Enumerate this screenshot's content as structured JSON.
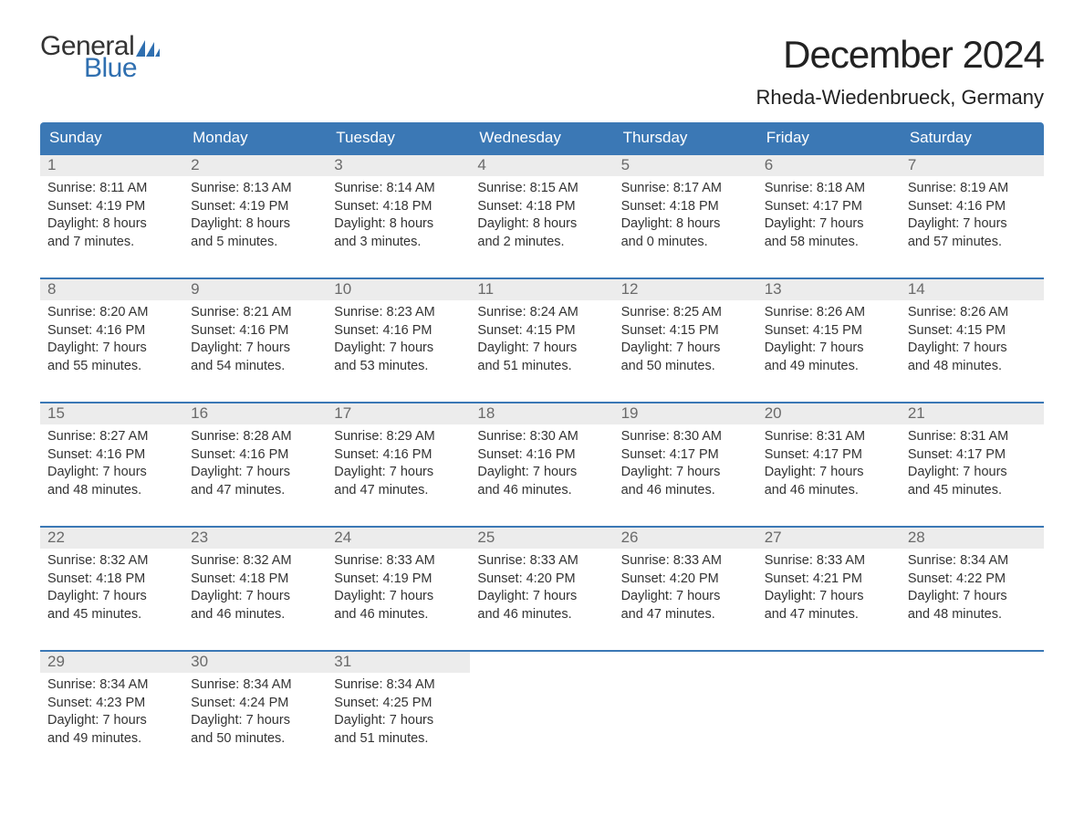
{
  "brand": {
    "line1": "General",
    "line2": "Blue",
    "accent_color": "#2f6fb0"
  },
  "header": {
    "month_title": "December 2024",
    "location": "Rheda-Wiedenbrueck, Germany"
  },
  "style": {
    "type": "calendar-table",
    "header_bg": "#3b78b5",
    "header_text_color": "#ffffff",
    "row_separator_color": "#3b78b5",
    "daynum_bg": "#ececec",
    "daynum_color": "#6a6a6a",
    "body_text_color": "#333333",
    "page_bg": "#ffffff",
    "title_fontsize": 42,
    "location_fontsize": 22,
    "weekday_fontsize": 17,
    "body_fontsize": 14.5,
    "columns": 7
  },
  "weekdays": [
    "Sunday",
    "Monday",
    "Tuesday",
    "Wednesday",
    "Thursday",
    "Friday",
    "Saturday"
  ],
  "weeks": [
    [
      {
        "day": "1",
        "sunrise": "Sunrise: 8:11 AM",
        "sunset": "Sunset: 4:19 PM",
        "d1": "Daylight: 8 hours",
        "d2": "and 7 minutes."
      },
      {
        "day": "2",
        "sunrise": "Sunrise: 8:13 AM",
        "sunset": "Sunset: 4:19 PM",
        "d1": "Daylight: 8 hours",
        "d2": "and 5 minutes."
      },
      {
        "day": "3",
        "sunrise": "Sunrise: 8:14 AM",
        "sunset": "Sunset: 4:18 PM",
        "d1": "Daylight: 8 hours",
        "d2": "and 3 minutes."
      },
      {
        "day": "4",
        "sunrise": "Sunrise: 8:15 AM",
        "sunset": "Sunset: 4:18 PM",
        "d1": "Daylight: 8 hours",
        "d2": "and 2 minutes."
      },
      {
        "day": "5",
        "sunrise": "Sunrise: 8:17 AM",
        "sunset": "Sunset: 4:18 PM",
        "d1": "Daylight: 8 hours",
        "d2": "and 0 minutes."
      },
      {
        "day": "6",
        "sunrise": "Sunrise: 8:18 AM",
        "sunset": "Sunset: 4:17 PM",
        "d1": "Daylight: 7 hours",
        "d2": "and 58 minutes."
      },
      {
        "day": "7",
        "sunrise": "Sunrise: 8:19 AM",
        "sunset": "Sunset: 4:16 PM",
        "d1": "Daylight: 7 hours",
        "d2": "and 57 minutes."
      }
    ],
    [
      {
        "day": "8",
        "sunrise": "Sunrise: 8:20 AM",
        "sunset": "Sunset: 4:16 PM",
        "d1": "Daylight: 7 hours",
        "d2": "and 55 minutes."
      },
      {
        "day": "9",
        "sunrise": "Sunrise: 8:21 AM",
        "sunset": "Sunset: 4:16 PM",
        "d1": "Daylight: 7 hours",
        "d2": "and 54 minutes."
      },
      {
        "day": "10",
        "sunrise": "Sunrise: 8:23 AM",
        "sunset": "Sunset: 4:16 PM",
        "d1": "Daylight: 7 hours",
        "d2": "and 53 minutes."
      },
      {
        "day": "11",
        "sunrise": "Sunrise: 8:24 AM",
        "sunset": "Sunset: 4:15 PM",
        "d1": "Daylight: 7 hours",
        "d2": "and 51 minutes."
      },
      {
        "day": "12",
        "sunrise": "Sunrise: 8:25 AM",
        "sunset": "Sunset: 4:15 PM",
        "d1": "Daylight: 7 hours",
        "d2": "and 50 minutes."
      },
      {
        "day": "13",
        "sunrise": "Sunrise: 8:26 AM",
        "sunset": "Sunset: 4:15 PM",
        "d1": "Daylight: 7 hours",
        "d2": "and 49 minutes."
      },
      {
        "day": "14",
        "sunrise": "Sunrise: 8:26 AM",
        "sunset": "Sunset: 4:15 PM",
        "d1": "Daylight: 7 hours",
        "d2": "and 48 minutes."
      }
    ],
    [
      {
        "day": "15",
        "sunrise": "Sunrise: 8:27 AM",
        "sunset": "Sunset: 4:16 PM",
        "d1": "Daylight: 7 hours",
        "d2": "and 48 minutes."
      },
      {
        "day": "16",
        "sunrise": "Sunrise: 8:28 AM",
        "sunset": "Sunset: 4:16 PM",
        "d1": "Daylight: 7 hours",
        "d2": "and 47 minutes."
      },
      {
        "day": "17",
        "sunrise": "Sunrise: 8:29 AM",
        "sunset": "Sunset: 4:16 PM",
        "d1": "Daylight: 7 hours",
        "d2": "and 47 minutes."
      },
      {
        "day": "18",
        "sunrise": "Sunrise: 8:30 AM",
        "sunset": "Sunset: 4:16 PM",
        "d1": "Daylight: 7 hours",
        "d2": "and 46 minutes."
      },
      {
        "day": "19",
        "sunrise": "Sunrise: 8:30 AM",
        "sunset": "Sunset: 4:17 PM",
        "d1": "Daylight: 7 hours",
        "d2": "and 46 minutes."
      },
      {
        "day": "20",
        "sunrise": "Sunrise: 8:31 AM",
        "sunset": "Sunset: 4:17 PM",
        "d1": "Daylight: 7 hours",
        "d2": "and 46 minutes."
      },
      {
        "day": "21",
        "sunrise": "Sunrise: 8:31 AM",
        "sunset": "Sunset: 4:17 PM",
        "d1": "Daylight: 7 hours",
        "d2": "and 45 minutes."
      }
    ],
    [
      {
        "day": "22",
        "sunrise": "Sunrise: 8:32 AM",
        "sunset": "Sunset: 4:18 PM",
        "d1": "Daylight: 7 hours",
        "d2": "and 45 minutes."
      },
      {
        "day": "23",
        "sunrise": "Sunrise: 8:32 AM",
        "sunset": "Sunset: 4:18 PM",
        "d1": "Daylight: 7 hours",
        "d2": "and 46 minutes."
      },
      {
        "day": "24",
        "sunrise": "Sunrise: 8:33 AM",
        "sunset": "Sunset: 4:19 PM",
        "d1": "Daylight: 7 hours",
        "d2": "and 46 minutes."
      },
      {
        "day": "25",
        "sunrise": "Sunrise: 8:33 AM",
        "sunset": "Sunset: 4:20 PM",
        "d1": "Daylight: 7 hours",
        "d2": "and 46 minutes."
      },
      {
        "day": "26",
        "sunrise": "Sunrise: 8:33 AM",
        "sunset": "Sunset: 4:20 PM",
        "d1": "Daylight: 7 hours",
        "d2": "and 47 minutes."
      },
      {
        "day": "27",
        "sunrise": "Sunrise: 8:33 AM",
        "sunset": "Sunset: 4:21 PM",
        "d1": "Daylight: 7 hours",
        "d2": "and 47 minutes."
      },
      {
        "day": "28",
        "sunrise": "Sunrise: 8:34 AM",
        "sunset": "Sunset: 4:22 PM",
        "d1": "Daylight: 7 hours",
        "d2": "and 48 minutes."
      }
    ],
    [
      {
        "day": "29",
        "sunrise": "Sunrise: 8:34 AM",
        "sunset": "Sunset: 4:23 PM",
        "d1": "Daylight: 7 hours",
        "d2": "and 49 minutes."
      },
      {
        "day": "30",
        "sunrise": "Sunrise: 8:34 AM",
        "sunset": "Sunset: 4:24 PM",
        "d1": "Daylight: 7 hours",
        "d2": "and 50 minutes."
      },
      {
        "day": "31",
        "sunrise": "Sunrise: 8:34 AM",
        "sunset": "Sunset: 4:25 PM",
        "d1": "Daylight: 7 hours",
        "d2": "and 51 minutes."
      },
      {
        "empty": true
      },
      {
        "empty": true
      },
      {
        "empty": true
      },
      {
        "empty": true
      }
    ]
  ]
}
